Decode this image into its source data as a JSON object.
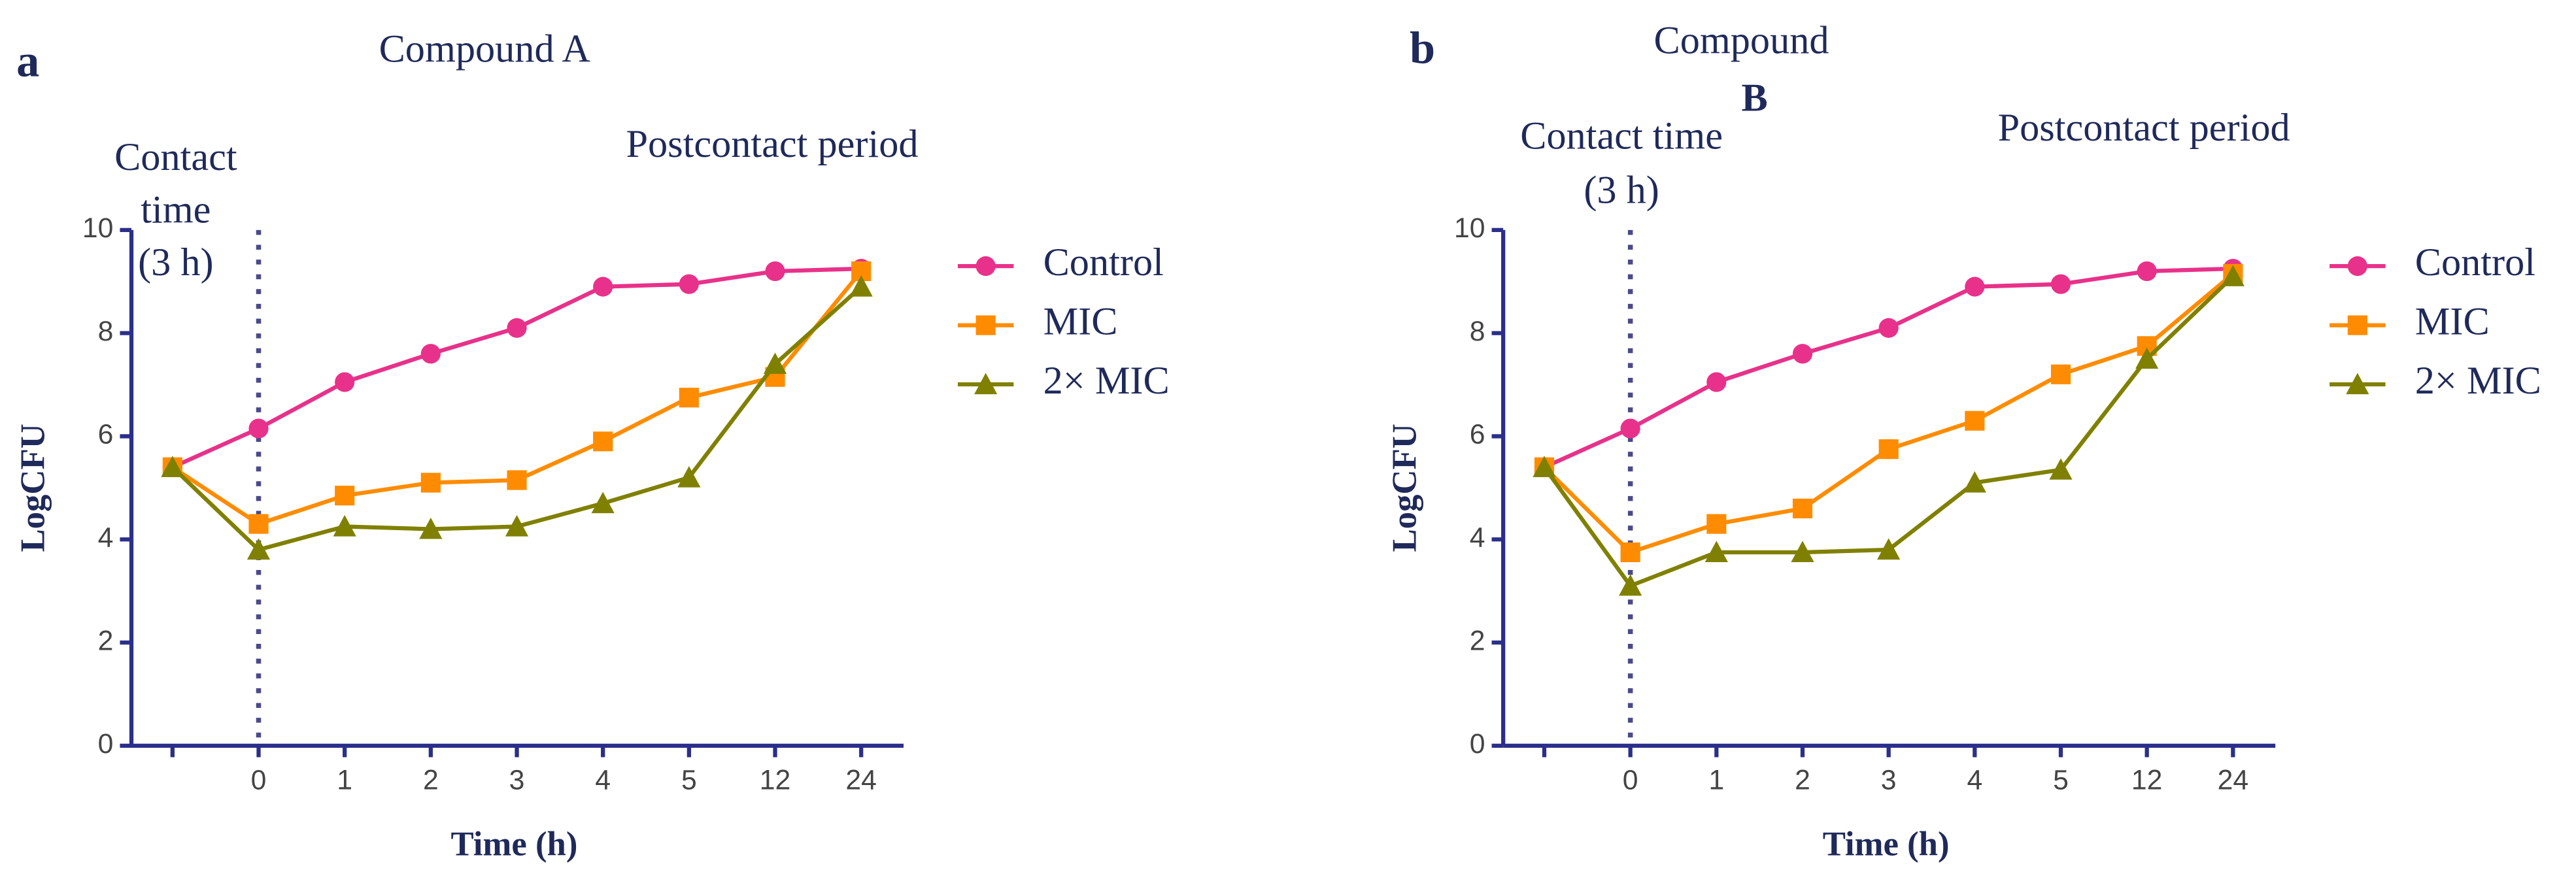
{
  "chart_data": [
    {
      "type": "line",
      "panel": "a",
      "title_lines": [
        "Compound A"
      ],
      "annotations": [
        [
          "Contact",
          "time",
          "(3 h)"
        ],
        [
          "Postcontact period"
        ]
      ],
      "x_label": "Time (h)",
      "y_label": "LogCFU",
      "categories": [
        null,
        "0",
        "1",
        "2",
        "3",
        "4",
        "5",
        "12",
        "24"
      ],
      "ylim": [
        0,
        10
      ],
      "yticks": [
        0,
        2,
        4,
        6,
        8,
        10
      ],
      "series": [
        {
          "name": "Control",
          "color": "#e8318a",
          "values": [
            5.4,
            6.15,
            7.05,
            7.6,
            8.1,
            8.9,
            8.95,
            9.2,
            9.25
          ]
        },
        {
          "name": "MIC",
          "color": "#ff8c00",
          "values": [
            5.4,
            4.3,
            4.85,
            5.1,
            5.15,
            5.9,
            6.75,
            7.15,
            9.2
          ]
        },
        {
          "name": "2× MIC",
          "color": "#808000",
          "values": [
            5.4,
            3.8,
            4.25,
            4.2,
            4.25,
            4.7,
            5.2,
            7.4,
            8.9
          ]
        }
      ]
    },
    {
      "type": "line",
      "panel": "b",
      "title_lines": [
        "Compound",
        "B"
      ],
      "annotations": [
        [
          "Contact time",
          "(3 h)"
        ],
        [
          "Postcontact period"
        ]
      ],
      "x_label": "Time (h)",
      "y_label": "LogCFU",
      "categories": [
        null,
        "0",
        "1",
        "2",
        "3",
        "4",
        "5",
        "12",
        "24"
      ],
      "ylim": [
        0,
        10
      ],
      "yticks": [
        0,
        2,
        4,
        6,
        8,
        10
      ],
      "series": [
        {
          "name": "Control",
          "color": "#e8318a",
          "values": [
            5.4,
            6.15,
            7.05,
            7.6,
            8.1,
            8.9,
            8.95,
            9.2,
            9.25
          ]
        },
        {
          "name": "MIC",
          "color": "#ff8c00",
          "values": [
            5.4,
            3.75,
            4.3,
            4.6,
            5.75,
            6.3,
            7.2,
            7.75,
            9.15
          ]
        },
        {
          "name": "2× MIC",
          "color": "#808000",
          "values": [
            5.4,
            3.1,
            3.75,
            3.75,
            3.8,
            5.1,
            5.35,
            7.5,
            9.1
          ]
        }
      ]
    }
  ]
}
